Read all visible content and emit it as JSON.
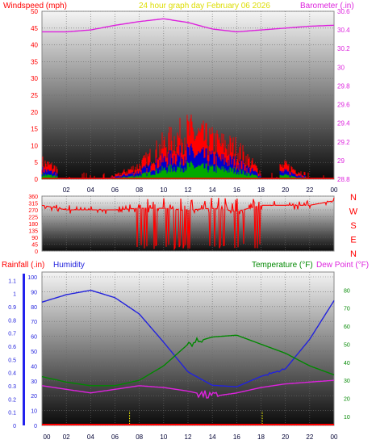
{
  "header": {
    "left_label": "Windspeed (mph)",
    "center_label": "24 hour graph day   February 06 2026",
    "right_label": "Barometer (.in)"
  },
  "colors": {
    "wind": "#ff0000",
    "wind_avg": "#0000cc",
    "wind_low": "#00aa00",
    "baro": "#dd22dd",
    "direction": "#ff0000",
    "humidity": "#2222dd",
    "temperature": "#008800",
    "dewpoint": "#dd22dd",
    "rain": "#ff0000",
    "rain_bar": "#2222ee",
    "hour_tick": "#ffff00"
  },
  "chart_data": [
    {
      "type": "line",
      "title": "24 hour graph day   February 06 2026",
      "xlabel": "",
      "ylabel": "Windspeed (mph)",
      "y2label": "Barometer (.in)",
      "x": [
        0,
        2,
        4,
        6,
        8,
        10,
        12,
        14,
        16,
        18,
        20,
        22,
        24
      ],
      "x_tick_labels": [
        "02",
        "04",
        "06",
        "08",
        "10",
        "12",
        "14",
        "16",
        "18",
        "20",
        "22",
        "00"
      ],
      "ylim": [
        0,
        50
      ],
      "y_ticks": [
        "0",
        "5",
        "10",
        "15",
        "20",
        "25",
        "30",
        "35",
        "40",
        "45",
        "50"
      ],
      "y2lim": [
        28.8,
        30.6
      ],
      "y2_ticks": [
        "28.8",
        "29",
        "29.2",
        "29.4",
        "29.6",
        "29.8",
        "30",
        "30.2",
        "30.4",
        "30.6"
      ],
      "series": [
        {
          "name": "Windspeed (mph)",
          "values": [
            5,
            2,
            1,
            1,
            4,
            10,
            14,
            11,
            9,
            2,
            4,
            1,
            0
          ]
        },
        {
          "name": "Barometer (.in)",
          "values": [
            30.38,
            30.38,
            30.4,
            30.45,
            30.49,
            30.52,
            30.48,
            30.41,
            30.38,
            30.4,
            30.42,
            30.44,
            30.45
          ]
        }
      ]
    },
    {
      "type": "line",
      "ylabel": "Wind direction",
      "ylim": [
        0,
        360
      ],
      "y_ticks": [
        "0",
        "45",
        "90",
        "135",
        "180",
        "225",
        "270",
        "315",
        "360"
      ],
      "y2_ticks": [
        "N",
        "W",
        "S",
        "E",
        "N"
      ],
      "x": [
        0,
        2,
        4,
        6,
        8,
        10,
        12,
        14,
        16,
        18,
        20,
        22,
        24
      ],
      "series": [
        {
          "name": "Direction",
          "values": [
            300,
            270,
            270,
            270,
            280,
            280,
            270,
            280,
            260,
            300,
            300,
            300,
            330
          ]
        }
      ]
    },
    {
      "type": "line",
      "ylabel": "Rainfall (.in)",
      "y2label": "Temperature (°F)",
      "ylim": [
        0,
        1.2
      ],
      "y_ticks": [
        "0",
        "0.1",
        "0.2",
        "0.3",
        "0.4",
        "0.5",
        "0.6",
        "0.7",
        "0.8",
        "0.9",
        "1",
        "1.1"
      ],
      "humidity_ticks": [
        "0",
        "10",
        "20",
        "30",
        "40",
        "50",
        "60",
        "70",
        "80",
        "90",
        "100"
      ],
      "y2lim": [
        5,
        90
      ],
      "y2_ticks": [
        "10",
        "20",
        "30",
        "40",
        "50",
        "60",
        "70",
        "80"
      ],
      "x": [
        0,
        2,
        4,
        6,
        8,
        10,
        12,
        14,
        16,
        18,
        20,
        22,
        24
      ],
      "x_tick_labels": [
        "00",
        "02",
        "04",
        "06",
        "08",
        "10",
        "12",
        "14",
        "16",
        "18",
        "20",
        "22",
        "00"
      ],
      "series": [
        {
          "name": "Humidity",
          "values": [
            83,
            88,
            91,
            86,
            75,
            56,
            36,
            27,
            26,
            33,
            38,
            58,
            84
          ]
        },
        {
          "name": "Temperature (°F)",
          "values": [
            32,
            29,
            27,
            27,
            30,
            38,
            50,
            54,
            55,
            50,
            45,
            38,
            33
          ]
        },
        {
          "name": "Dew Point (°F)",
          "values": [
            27,
            25,
            23,
            25,
            27,
            26,
            24,
            21,
            23,
            26,
            28,
            29,
            30
          ]
        },
        {
          "name": "Rainfall (.in)",
          "values": [
            0,
            0,
            0,
            0,
            0,
            0,
            0,
            0,
            0,
            0,
            0,
            0,
            0
          ]
        }
      ]
    }
  ],
  "bottom_header": {
    "rain_label": "Rainfall (.in)",
    "humidity_label": "Humidity",
    "temp_label": "Temperature (°F)",
    "dew_label": "Dew Point (°F)"
  }
}
